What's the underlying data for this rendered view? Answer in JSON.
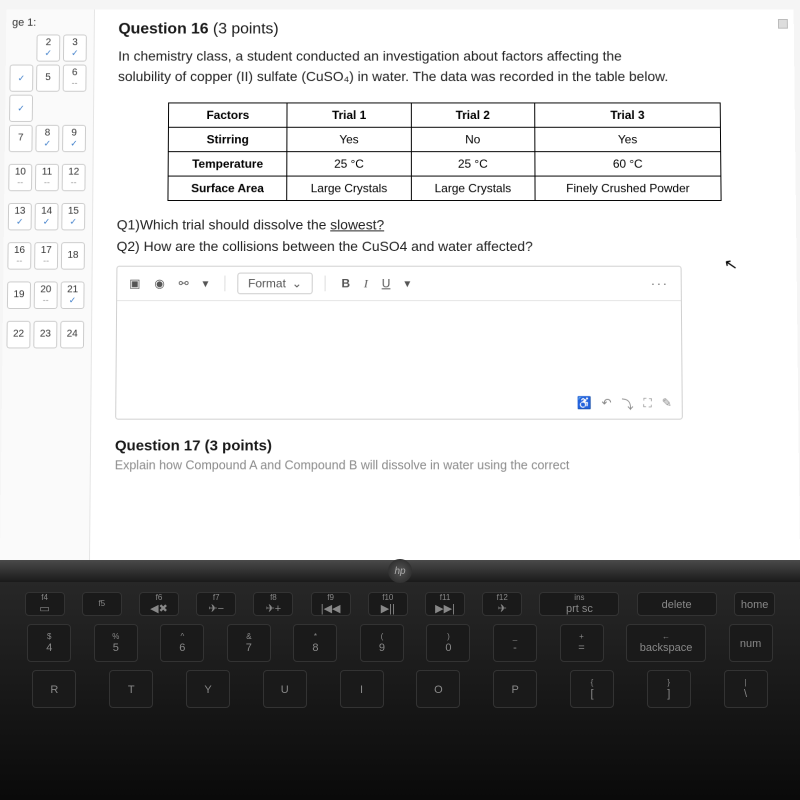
{
  "sidebar": {
    "title": "ge 1:",
    "cells": [
      {
        "n": "",
        "mark": ""
      },
      {
        "n": "2",
        "mark": "check"
      },
      {
        "n": "3",
        "mark": "check"
      },
      {
        "n": "",
        "mark": "check"
      },
      {
        "n": "5",
        "mark": ""
      },
      {
        "n": "6",
        "mark": "dash"
      },
      {
        "n": "",
        "mark": "check"
      },
      {
        "n": "",
        "mark": ""
      },
      {
        "n": "",
        "mark": ""
      },
      {
        "n": "7",
        "mark": ""
      },
      {
        "n": "8",
        "mark": "check"
      },
      {
        "n": "9",
        "mark": "check"
      },
      {
        "n": "",
        "mark": ""
      },
      {
        "n": "",
        "mark": ""
      },
      {
        "n": "",
        "mark": ""
      },
      {
        "n": "10",
        "mark": "dash"
      },
      {
        "n": "11",
        "mark": "dash"
      },
      {
        "n": "12",
        "mark": "dash"
      },
      {
        "n": "",
        "mark": ""
      },
      {
        "n": "",
        "mark": ""
      },
      {
        "n": "",
        "mark": ""
      },
      {
        "n": "13",
        "mark": "check"
      },
      {
        "n": "14",
        "mark": "check"
      },
      {
        "n": "15",
        "mark": "check"
      },
      {
        "n": "",
        "mark": ""
      },
      {
        "n": "",
        "mark": ""
      },
      {
        "n": "",
        "mark": ""
      },
      {
        "n": "16",
        "mark": "dash"
      },
      {
        "n": "17",
        "mark": "dash"
      },
      {
        "n": "18",
        "mark": ""
      },
      {
        "n": "",
        "mark": ""
      },
      {
        "n": "",
        "mark": ""
      },
      {
        "n": "",
        "mark": ""
      },
      {
        "n": "19",
        "mark": ""
      },
      {
        "n": "20",
        "mark": "dash"
      },
      {
        "n": "21",
        "mark": "check"
      },
      {
        "n": "",
        "mark": ""
      },
      {
        "n": "",
        "mark": ""
      },
      {
        "n": "",
        "mark": ""
      },
      {
        "n": "22",
        "mark": ""
      },
      {
        "n": "23",
        "mark": ""
      },
      {
        "n": "24",
        "mark": ""
      }
    ]
  },
  "question": {
    "number": "Question 16",
    "points": "(3 points)",
    "prompt": "In chemistry class, a student conducted an investigation about factors affecting the solubility of copper (II) sulfate (CuSO₄) in water. The data was recorded in the table below.",
    "q1_prefix": "Q1)Which trial should dissolve the ",
    "q1_underline": "slowest?",
    "q2": "Q2) How are the collisions between the CuSO4 and water affected?"
  },
  "table": {
    "headers": [
      "Factors",
      "Trial 1",
      "Trial 2",
      "Trial 3"
    ],
    "rows": [
      [
        "Stirring",
        "Yes",
        "No",
        "Yes"
      ],
      [
        "Temperature",
        "25 °C",
        "25 °C",
        "60 °C"
      ],
      [
        "Surface Area",
        "Large Crystals",
        "Large Crystals",
        "Finely Crushed Powder"
      ]
    ],
    "border_color": "#000000",
    "header_bg": "#ffffff",
    "cell_bg": "#ffffff",
    "font_size": 12
  },
  "editor": {
    "format_label": "Format",
    "icons": {
      "media": "▣",
      "camera": "◉",
      "link": "⚯",
      "more": "···",
      "undo": "↶",
      "find": "⤵",
      "expand": "⛶",
      "edit": "✎",
      "a11y": "♿"
    }
  },
  "q17": {
    "title": "Question 17 (3 points)",
    "teaser": "Explain how Compound A and Compound B will dissolve in water using the correct"
  },
  "keyboard": {
    "fn_row": [
      {
        "t": "f4",
        "b": "▭"
      },
      {
        "t": "f5",
        "b": ""
      },
      {
        "t": "f6",
        "b": "◀✖"
      },
      {
        "t": "f7",
        "b": "✈−"
      },
      {
        "t": "f8",
        "b": "✈+"
      },
      {
        "t": "f9",
        "b": "|◀◀"
      },
      {
        "t": "f10",
        "b": "▶||"
      },
      {
        "t": "f11",
        "b": "▶▶|"
      },
      {
        "t": "f12",
        "b": "✈"
      },
      {
        "t": "ins",
        "b": "prt sc"
      },
      {
        "t": "",
        "b": "delete"
      },
      {
        "t": "",
        "b": "home"
      }
    ],
    "num_row": [
      {
        "t": "$",
        "b": "4"
      },
      {
        "t": "%",
        "b": "5"
      },
      {
        "t": "^",
        "b": "6"
      },
      {
        "t": "&",
        "b": "7"
      },
      {
        "t": "*",
        "b": "8"
      },
      {
        "t": "(",
        "b": "9"
      },
      {
        "t": ")",
        "b": "0"
      },
      {
        "t": "_",
        "b": "-"
      },
      {
        "t": "+",
        "b": "="
      },
      {
        "t": "←",
        "b": "backspace"
      },
      {
        "t": "",
        "b": "num"
      }
    ],
    "letter_row": [
      {
        "b": "R"
      },
      {
        "b": "T"
      },
      {
        "b": "Y"
      },
      {
        "b": "U"
      },
      {
        "b": "I"
      },
      {
        "b": "O"
      },
      {
        "b": "P"
      },
      {
        "t": "{",
        "b": "["
      },
      {
        "t": "}",
        "b": "]"
      },
      {
        "t": "|",
        "b": "\\"
      }
    ]
  },
  "colors": {
    "page_bg": "#ffffff",
    "sidebar_bg": "#fafafa",
    "border": "#e5e5e5",
    "text": "#1a1a1a",
    "muted": "#8a8a8a",
    "check": "#3b7cc9",
    "kb_bg": "#0a0a0a",
    "key_bg": "#1a1a1a",
    "key_text": "#888888"
  }
}
